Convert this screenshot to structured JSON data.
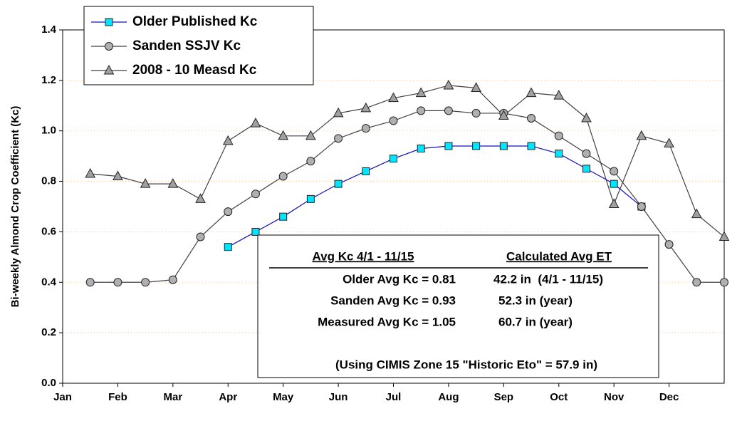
{
  "chart_data": {
    "type": "line",
    "y_label": "Bi-weekly Almond Crop Coefficient (Kc)",
    "x": [
      0.5,
      1,
      1.5,
      2,
      2.5,
      3,
      3.5,
      4,
      4.5,
      5,
      5.5,
      6,
      6.5,
      7,
      7.5,
      8,
      8.5,
      9,
      9.5,
      10,
      10.5,
      11,
      11.5,
      12
    ],
    "xlim": [
      0,
      12
    ],
    "xticks": [
      {
        "value": 0,
        "label": "Jan"
      },
      {
        "value": 1,
        "label": "Feb"
      },
      {
        "value": 2,
        "label": "Mar"
      },
      {
        "value": 3,
        "label": "Apr"
      },
      {
        "value": 4,
        "label": "May"
      },
      {
        "value": 5,
        "label": "Jun"
      },
      {
        "value": 6,
        "label": "Jul"
      },
      {
        "value": 7,
        "label": "Aug"
      },
      {
        "value": 8,
        "label": "Sep"
      },
      {
        "value": 9,
        "label": "Oct"
      },
      {
        "value": 10,
        "label": "Nov"
      },
      {
        "value": 11,
        "label": "Dec"
      }
    ],
    "ylim": [
      0,
      1.4
    ],
    "yticks": [
      {
        "value": 0,
        "label": "0.0"
      },
      0.2,
      0.4,
      0.6,
      0.8,
      {
        "value": 1,
        "label": "1.0"
      },
      1.2,
      1.4
    ],
    "grid": true,
    "series": [
      {
        "name": "Older Published Kc",
        "color": "#1010c0",
        "marker": "square",
        "marker_color": "#00e5ff",
        "values": [
          null,
          null,
          null,
          null,
          null,
          0.54,
          0.6,
          0.66,
          0.73,
          0.79,
          0.84,
          0.89,
          0.93,
          0.94,
          0.94,
          0.94,
          0.94,
          0.91,
          0.85,
          0.79,
          0.7,
          null,
          null,
          null
        ]
      },
      {
        "name": "Sanden SSJV Kc",
        "color": "#404040",
        "marker": "circle",
        "marker_color": "#b0b0b0",
        "values": [
          0.4,
          0.4,
          0.4,
          0.41,
          0.58,
          0.68,
          0.75,
          0.82,
          0.88,
          0.97,
          1.01,
          1.04,
          1.08,
          1.08,
          1.07,
          1.07,
          1.05,
          0.98,
          0.91,
          0.84,
          0.7,
          0.55,
          0.4,
          0.4
        ]
      },
      {
        "name": "2008 - 10 Measd Kc",
        "color": "#404040",
        "marker": "triangle",
        "marker_color": "#a0a0a0",
        "values": [
          0.83,
          0.82,
          0.79,
          0.79,
          0.73,
          0.96,
          1.03,
          0.98,
          0.98,
          1.07,
          1.09,
          1.13,
          1.15,
          1.18,
          1.17,
          1.06,
          1.15,
          1.14,
          1.05,
          0.71,
          0.98,
          0.95,
          0.67,
          0.58
        ]
      }
    ],
    "annotation": {
      "headers": [
        "Avg Kc 4/1 - 11/15",
        "Calculated Avg ET"
      ],
      "rows": [
        [
          "Older Avg Kc = 0.81",
          "42.2 in  (4/1 - 11/15)"
        ],
        [
          "Sanden Avg Kc = 0.93",
          "52.3 in (year)"
        ],
        [
          "Measured Avg Kc = 1.05",
          "60.7 in (year)"
        ]
      ],
      "note": "(Using CIMIS Zone 15 \"Historic Eto\" = 57.9 in)"
    }
  }
}
